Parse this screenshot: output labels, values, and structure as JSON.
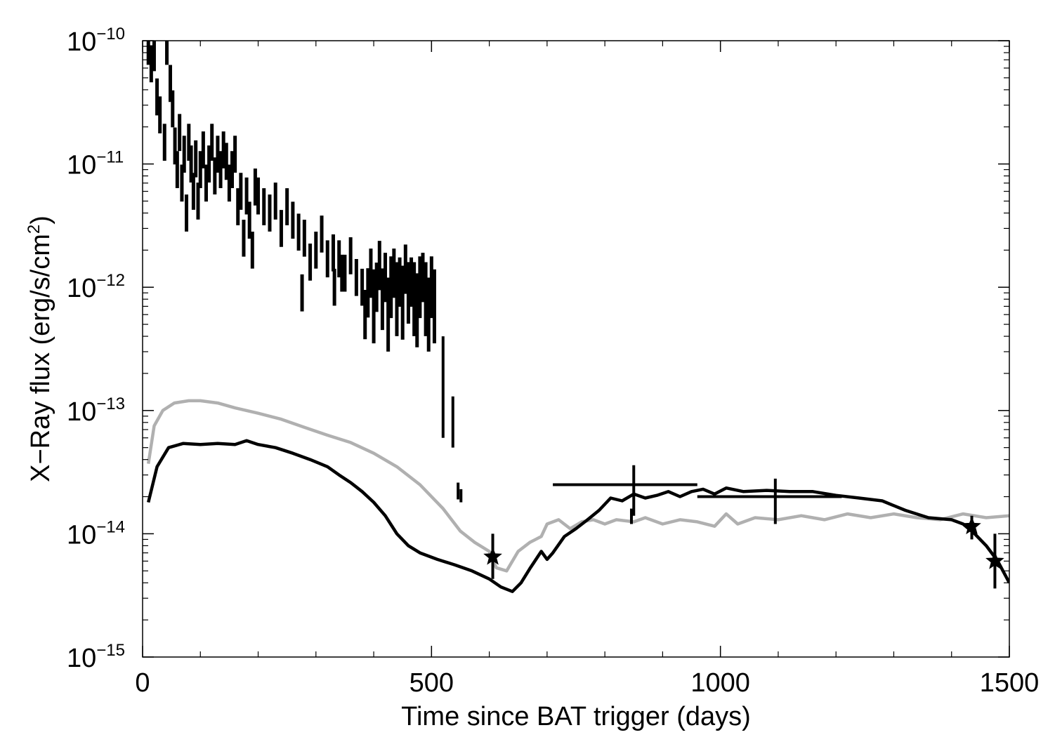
{
  "chart_data": {
    "type": "scatter",
    "title": "",
    "xlabel": "Time since BAT trigger (days)",
    "ylabel": "X−Ray flux (erg/s/cm",
    "ylabel_sup": "2",
    "ylabel_close": ")",
    "xlim": [
      0,
      1500
    ],
    "ylim": [
      1e-15,
      1e-10
    ],
    "yscale": "log",
    "grid": false,
    "legend": "none",
    "x_ticks": [
      {
        "value": 0,
        "label": "0"
      },
      {
        "value": 500,
        "label": "500"
      },
      {
        "value": 1000,
        "label": "1000"
      },
      {
        "value": 1500,
        "label": "1500"
      }
    ],
    "y_ticks": [
      {
        "value": 1e-15,
        "base": "10",
        "exp": "−15"
      },
      {
        "value": 1e-14,
        "base": "10",
        "exp": "−14"
      },
      {
        "value": 1e-13,
        "base": "10",
        "exp": "−13"
      },
      {
        "value": 1e-12,
        "base": "10",
        "exp": "−12"
      },
      {
        "value": 1e-11,
        "base": "10",
        "exp": "−11"
      },
      {
        "value": 1e-10,
        "base": "10",
        "exp": "−10"
      }
    ],
    "series": [
      {
        "kind": "line",
        "color": "#b0b0b0",
        "points": [
          [
            10,
            3.7e-14
          ],
          [
            20,
            7.5e-14
          ],
          [
            35,
            1e-13
          ],
          [
            55,
            1.15e-13
          ],
          [
            80,
            1.2e-13
          ],
          [
            100,
            1.2e-13
          ],
          [
            130,
            1.15e-13
          ],
          [
            160,
            1.05e-13
          ],
          [
            200,
            9.5e-14
          ],
          [
            240,
            8.5e-14
          ],
          [
            280,
            7.3e-14
          ],
          [
            320,
            6.3e-14
          ],
          [
            360,
            5.5e-14
          ],
          [
            400,
            4.5e-14
          ],
          [
            440,
            3.5e-14
          ],
          [
            480,
            2.5e-14
          ],
          [
            520,
            1.6e-14
          ],
          [
            550,
            1.05e-14
          ],
          [
            575,
            8.5e-15
          ],
          [
            600,
            7.2e-15
          ],
          [
            612,
            5.3e-15
          ],
          [
            630,
            5e-15
          ],
          [
            650,
            7.2e-15
          ],
          [
            670,
            8.5e-15
          ],
          [
            690,
            9.5e-15
          ],
          [
            700,
            1.2e-14
          ],
          [
            720,
            1.3e-14
          ],
          [
            740,
            1.1e-14
          ],
          [
            760,
            1.25e-14
          ],
          [
            780,
            1.3e-14
          ],
          [
            800,
            1.2e-14
          ],
          [
            820,
            1.3e-14
          ],
          [
            850,
            1.25e-14
          ],
          [
            870,
            1.35e-14
          ],
          [
            900,
            1.2e-14
          ],
          [
            930,
            1.3e-14
          ],
          [
            960,
            1.25e-14
          ],
          [
            990,
            1.15e-14
          ],
          [
            1010,
            1.45e-14
          ],
          [
            1030,
            1.2e-14
          ],
          [
            1060,
            1.35e-14
          ],
          [
            1100,
            1.3e-14
          ],
          [
            1140,
            1.4e-14
          ],
          [
            1180,
            1.3e-14
          ],
          [
            1220,
            1.45e-14
          ],
          [
            1260,
            1.35e-14
          ],
          [
            1300,
            1.45e-14
          ],
          [
            1340,
            1.35e-14
          ],
          [
            1380,
            1.3e-14
          ],
          [
            1420,
            1.45e-14
          ],
          [
            1460,
            1.35e-14
          ],
          [
            1500,
            1.4e-14
          ]
        ]
      },
      {
        "kind": "line",
        "color": "#000000",
        "points": [
          [
            10,
            1.8e-14
          ],
          [
            25,
            3.5e-14
          ],
          [
            45,
            5e-14
          ],
          [
            70,
            5.4e-14
          ],
          [
            100,
            5.3e-14
          ],
          [
            130,
            5.4e-14
          ],
          [
            160,
            5.3e-14
          ],
          [
            180,
            5.7e-14
          ],
          [
            200,
            5.3e-14
          ],
          [
            230,
            5e-14
          ],
          [
            260,
            4.5e-14
          ],
          [
            290,
            4e-14
          ],
          [
            320,
            3.5e-14
          ],
          [
            340,
            3e-14
          ],
          [
            360,
            2.6e-14
          ],
          [
            380,
            2.2e-14
          ],
          [
            400,
            1.8e-14
          ],
          [
            420,
            1.4e-14
          ],
          [
            440,
            1e-14
          ],
          [
            460,
            8e-15
          ],
          [
            480,
            7e-15
          ],
          [
            510,
            6.2e-15
          ],
          [
            540,
            5.6e-15
          ],
          [
            570,
            5e-15
          ],
          [
            600,
            4.3e-15
          ],
          [
            620,
            3.7e-15
          ],
          [
            640,
            3.4e-15
          ],
          [
            655,
            4e-15
          ],
          [
            670,
            5.2e-15
          ],
          [
            690,
            7.2e-15
          ],
          [
            700,
            6.2e-15
          ],
          [
            710,
            7e-15
          ],
          [
            730,
            9.5e-15
          ],
          [
            750,
            1.1e-14
          ],
          [
            770,
            1.3e-14
          ],
          [
            790,
            1.55e-14
          ],
          [
            810,
            1.95e-14
          ],
          [
            830,
            1.85e-14
          ],
          [
            850,
            2.1e-14
          ],
          [
            870,
            1.95e-14
          ],
          [
            890,
            2.05e-14
          ],
          [
            910,
            2.2e-14
          ],
          [
            930,
            2e-14
          ],
          [
            950,
            2.2e-14
          ],
          [
            970,
            2.3e-14
          ],
          [
            990,
            2.1e-14
          ],
          [
            1010,
            2.35e-14
          ],
          [
            1040,
            2.2e-14
          ],
          [
            1080,
            2.25e-14
          ],
          [
            1120,
            2.2e-14
          ],
          [
            1160,
            2.2e-14
          ],
          [
            1200,
            2.05e-14
          ],
          [
            1240,
            1.95e-14
          ],
          [
            1280,
            1.85e-14
          ],
          [
            1320,
            1.55e-14
          ],
          [
            1360,
            1.35e-14
          ],
          [
            1400,
            1.3e-14
          ],
          [
            1420,
            1.2e-14
          ],
          [
            1440,
            1e-14
          ],
          [
            1460,
            8e-15
          ],
          [
            1480,
            6e-15
          ],
          [
            1500,
            4e-15
          ]
        ]
      }
    ],
    "xrt_errorbars": [
      [
        10,
        9e-11,
        0.15
      ],
      [
        15,
        6.5e-11,
        0.15
      ],
      [
        20,
        8e-11,
        0.15
      ],
      [
        25,
        3.5e-11,
        0.15
      ],
      [
        30,
        2.5e-11,
        0.15
      ],
      [
        38,
        1.5e-11,
        0.15
      ],
      [
        42,
        9e-11,
        0.15
      ],
      [
        48,
        4.5e-11,
        0.15
      ],
      [
        52,
        2.8e-11,
        0.15
      ],
      [
        56,
        1.4e-11,
        0.15
      ],
      [
        60,
        9e-12,
        0.15
      ],
      [
        64,
        1.8e-11,
        0.15
      ],
      [
        68,
        7e-12,
        0.15
      ],
      [
        72,
        1.2e-11,
        0.15
      ],
      [
        76,
        4e-12,
        0.15
      ],
      [
        80,
        1.5e-11,
        0.15
      ],
      [
        84,
        1e-11,
        0.15
      ],
      [
        88,
        6e-12,
        0.15
      ],
      [
        92,
        1.1e-11,
        0.15
      ],
      [
        96,
        5e-12,
        0.15
      ],
      [
        100,
        9e-12,
        0.15
      ],
      [
        105,
        1.3e-11,
        0.15
      ],
      [
        110,
        7e-12,
        0.15
      ],
      [
        115,
        1e-11,
        0.15
      ],
      [
        120,
        1.5e-11,
        0.15
      ],
      [
        125,
        8e-12,
        0.15
      ],
      [
        130,
        1.2e-11,
        0.15
      ],
      [
        135,
        9e-12,
        0.15
      ],
      [
        140,
        1.3e-11,
        0.15
      ],
      [
        145,
        1.05e-11,
        0.15
      ],
      [
        150,
        7e-12,
        0.15
      ],
      [
        155,
        9e-12,
        0.15
      ],
      [
        160,
        1.2e-11,
        0.15
      ],
      [
        165,
        4.5e-12,
        0.15
      ],
      [
        170,
        6e-12,
        0.15
      ],
      [
        175,
        2.5e-12,
        0.15
      ],
      [
        180,
        5.5e-12,
        0.15
      ],
      [
        185,
        3.5e-12,
        0.15
      ],
      [
        190,
        2e-12,
        0.15
      ],
      [
        195,
        6.5e-12,
        0.15
      ],
      [
        200,
        5.5e-12,
        0.15
      ],
      [
        210,
        4.5e-12,
        0.15
      ],
      [
        220,
        4e-12,
        0.15
      ],
      [
        230,
        5e-12,
        0.15
      ],
      [
        240,
        3e-12,
        0.15
      ],
      [
        250,
        4.5e-12,
        0.15
      ],
      [
        260,
        3.5e-12,
        0.15
      ],
      [
        270,
        2.8e-12,
        0.15
      ],
      [
        280,
        2.5e-12,
        0.15
      ],
      [
        290,
        1.6e-12,
        0.15
      ],
      [
        300,
        2e-12,
        0.15
      ],
      [
        310,
        2.7e-12,
        0.15
      ],
      [
        320,
        1.7e-12,
        0.15
      ],
      [
        330,
        1.9e-12,
        0.15
      ],
      [
        340,
        1.7e-12,
        0.15
      ],
      [
        350,
        1.3e-12,
        0.15
      ],
      [
        360,
        1.8e-12,
        0.15
      ],
      [
        370,
        1.2e-12,
        0.15
      ],
      [
        380,
        1e-12,
        0.15
      ],
      [
        385,
        6e-13,
        0.2
      ],
      [
        390,
        9e-13,
        0.2
      ],
      [
        395,
        1.3e-12,
        0.2
      ],
      [
        400,
        7e-13,
        0.3
      ],
      [
        405,
        1e-12,
        0.2
      ],
      [
        410,
        1.5e-12,
        0.2
      ],
      [
        415,
        8e-13,
        0.25
      ],
      [
        420,
        1.2e-12,
        0.2
      ],
      [
        425,
        6e-13,
        0.3
      ],
      [
        430,
        1e-12,
        0.25
      ],
      [
        435,
        1.3e-12,
        0.2
      ],
      [
        440,
        8e-13,
        0.3
      ],
      [
        445,
        1.1e-12,
        0.2
      ],
      [
        450,
        7.5e-13,
        0.3
      ],
      [
        455,
        1.4e-12,
        0.2
      ],
      [
        460,
        9e-13,
        0.25
      ],
      [
        465,
        1.1e-12,
        0.2
      ],
      [
        470,
        8e-13,
        0.3
      ],
      [
        475,
        6.5e-13,
        0.3
      ],
      [
        480,
        1e-12,
        0.25
      ],
      [
        485,
        1.2e-12,
        0.2
      ],
      [
        490,
        8e-13,
        0.3
      ],
      [
        495,
        6e-13,
        0.3
      ],
      [
        500,
        1e-12,
        0.25
      ],
      [
        505,
        7e-13,
        0.3
      ],
      [
        332,
        1e-12,
        0.15
      ],
      [
        345,
        1.3e-12,
        0.15
      ],
      [
        276,
        9e-13,
        0.15
      ]
    ],
    "sparse_errorbars": [
      {
        "x": 520,
        "y": 2e-13,
        "ylo": 6e-14,
        "yhi": 4e-13
      },
      {
        "x": 537,
        "y": 8e-14,
        "ylo": 5e-14,
        "yhi": 1.3e-13
      },
      {
        "x": 546,
        "y": 2.2e-14,
        "ylo": 1.9e-14,
        "yhi": 2.6e-14
      },
      {
        "x": 551,
        "y": 2e-14,
        "ylo": 1.8e-14,
        "yhi": 2.3e-14
      },
      {
        "x": 846,
        "y": 1.4e-14,
        "ylo": 1.2e-14,
        "yhi": 1.6e-14
      }
    ],
    "long_errorbars": [
      {
        "x": 850,
        "y": 2.5e-14,
        "xlo": 710,
        "xhi": 960,
        "ylo": 1.4e-14,
        "yhi": 3.6e-14
      },
      {
        "x": 1095,
        "y": 2e-14,
        "xlo": 960,
        "xhi": 1210,
        "ylo": 1.2e-14,
        "yhi": 2.8e-14
      }
    ],
    "star_points": [
      {
        "x": 606,
        "y": 6.5e-15,
        "ylo": 4.3e-15,
        "yhi": 1e-14
      },
      {
        "x": 1435,
        "y": 1.15e-14,
        "ylo": 9e-15,
        "yhi": 1.4e-14
      },
      {
        "x": 1475,
        "y": 6e-15,
        "ylo": 3.6e-15,
        "yhi": 1e-14
      }
    ]
  }
}
